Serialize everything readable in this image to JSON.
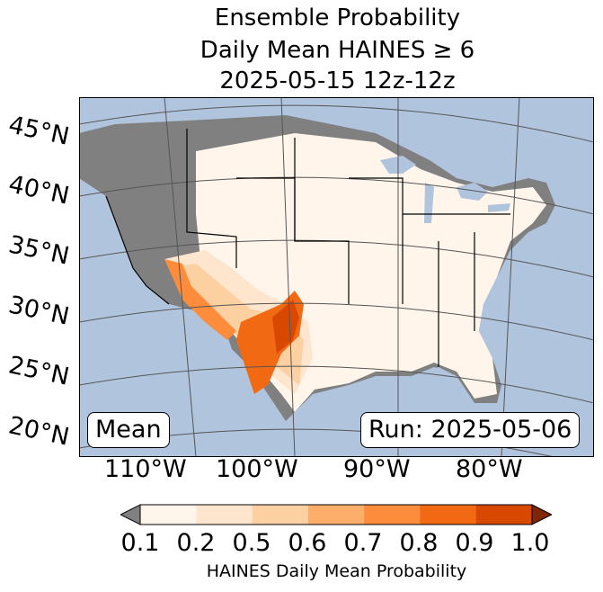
{
  "title": {
    "line1": "Ensemble Probability",
    "line2": "Daily Mean HAINES ≥ 6",
    "line3": "2025-05-15 12z-12z"
  },
  "map": {
    "lat_labels": [
      "45°N",
      "40°N",
      "35°N",
      "30°N",
      "25°N",
      "20°N"
    ],
    "lon_labels": [
      "110°W",
      "100°W",
      "90°W",
      "80°W"
    ],
    "stat_label": "Mean",
    "run_label": "Run: 2025-05-06",
    "colors": {
      "ocean": "#b0c4de",
      "land_low": "#808080",
      "land": "#fff5eb"
    }
  },
  "colorbar": {
    "label": "HAINES Daily Mean Probability",
    "ticks": [
      "0.1",
      "0.2",
      "0.5",
      "0.6",
      "0.7",
      "0.8",
      "0.9",
      "1.0"
    ],
    "colors": [
      "#fff5eb",
      "#fee6ce",
      "#fdd0a2",
      "#fdae6b",
      "#fd8d3c",
      "#f16913",
      "#d94801",
      "#a63603"
    ],
    "under_color": "#808080",
    "over_color": "#7f2704"
  }
}
